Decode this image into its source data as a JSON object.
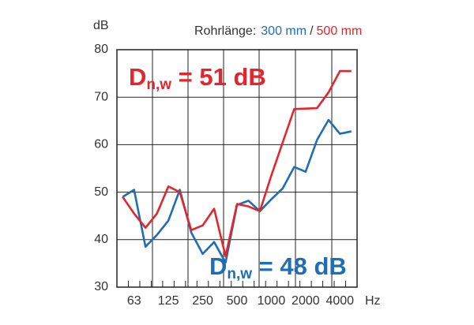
{
  "chart_data": {
    "type": "line",
    "y_label": "dB",
    "x_label": "Hz",
    "legend_title": "Rohrlänge:",
    "legend_separator": "/",
    "categories": [
      null,
      "63",
      null,
      null,
      "125",
      null,
      null,
      "250",
      null,
      null,
      "500",
      null,
      null,
      "1000",
      null,
      null,
      "2000",
      null,
      null,
      "4000",
      null
    ],
    "series": [
      {
        "name": "300 mm",
        "color": "#1f6db3",
        "values": [
          49,
          50.5,
          38.5,
          41,
          44,
          50.5,
          41.5,
          37,
          39.5,
          35.2,
          47.3,
          48.2,
          46,
          48.5,
          50.8,
          55.3,
          54.3,
          61,
          65.2,
          62.3,
          62.8
        ]
      },
      {
        "name": "500 mm",
        "color": "#e3262d",
        "values": [
          49,
          45.5,
          42.5,
          45.5,
          51.2,
          50,
          42,
          43,
          46.5,
          36.5,
          47.5,
          47,
          46,
          53.5,
          60.5,
          67.5,
          67.6,
          67.7,
          71,
          75.5,
          75.5
        ]
      }
    ],
    "annotations": [
      {
        "main": "D",
        "sub": "n,w",
        "tail": " = 51 dB",
        "color": "#e3262d"
      },
      {
        "main": "D",
        "sub": "n,w",
        "tail": " = 48 dB",
        "color": "#1f6db3"
      }
    ],
    "ylim": [
      30,
      80
    ],
    "yticks": [
      30,
      40,
      50,
      60,
      70,
      80
    ],
    "grid": true
  }
}
